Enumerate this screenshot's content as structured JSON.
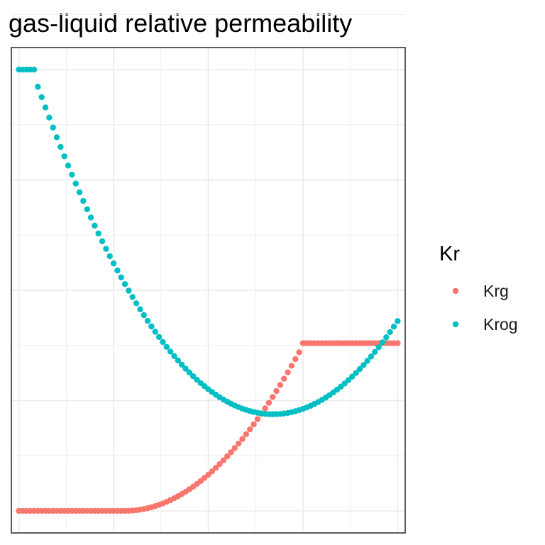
{
  "chart_data": {
    "type": "scatter",
    "title": "gas-liquid relative permeability",
    "xlabel": "",
    "ylabel": "",
    "xlim": [
      -0.02,
      1.02
    ],
    "ylim": [
      -0.05,
      1.05
    ],
    "grid": true,
    "legend": {
      "title": "Kr",
      "position": "right",
      "entries": [
        "Krg",
        "Krog"
      ]
    },
    "series": [
      {
        "name": "Krg",
        "color": "#F8766D",
        "x": [
          0,
          0.01,
          0.02,
          0.03,
          0.04,
          0.05,
          0.06,
          0.07,
          0.08,
          0.09,
          0.1,
          0.11,
          0.12,
          0.13,
          0.14,
          0.15,
          0.16,
          0.17,
          0.18,
          0.19,
          0.2,
          0.21,
          0.22,
          0.23,
          0.24,
          0.25,
          0.26,
          0.27,
          0.28,
          0.29,
          0.3,
          0.31,
          0.32,
          0.33,
          0.34,
          0.35,
          0.36,
          0.37,
          0.38,
          0.39,
          0.4,
          0.41,
          0.42,
          0.43,
          0.44,
          0.45,
          0.46,
          0.47,
          0.48,
          0.49,
          0.5,
          0.51,
          0.52,
          0.53,
          0.54,
          0.55,
          0.56,
          0.57,
          0.58,
          0.59,
          0.6,
          0.61,
          0.62,
          0.63,
          0.64,
          0.65,
          0.66,
          0.67,
          0.68,
          0.69,
          0.7,
          0.71,
          0.72,
          0.73,
          0.74,
          0.75,
          0.76,
          0.77,
          0.78,
          0.79,
          0.8,
          0.81,
          0.82,
          0.83,
          0.84,
          0.85,
          0.86,
          0.87,
          0.88,
          0.89,
          0.9,
          0.91,
          0.92,
          0.93,
          0.94,
          0.95,
          0.96,
          0.97,
          0.98,
          0.99,
          1
        ],
        "y": [
          0,
          0,
          0,
          0,
          0,
          0,
          0,
          0,
          0,
          0,
          0,
          0,
          0,
          0,
          0,
          0,
          0,
          0,
          0,
          0,
          0,
          0,
          0,
          0,
          0,
          0,
          0,
          0,
          0,
          0.0002,
          0.0007,
          0.0015,
          0.0027,
          0.0042,
          0.0061,
          0.0083,
          0.0108,
          0.0137,
          0.0169,
          0.0205,
          0.0244,
          0.0286,
          0.0332,
          0.0381,
          0.0433,
          0.0489,
          0.0548,
          0.0611,
          0.0677,
          0.0747,
          0.082,
          0.0896,
          0.0976,
          0.1059,
          0.1145,
          0.1235,
          0.1329,
          0.1425,
          0.1526,
          0.1629,
          0.1736,
          0.1847,
          0.1961,
          0.2078,
          0.2199,
          0.2323,
          0.245,
          0.2581,
          0.2716,
          0.2854,
          0.2995,
          0.314,
          0.3288,
          0.344,
          0.3595,
          0.38,
          0.38,
          0.38,
          0.38,
          0.38,
          0.38,
          0.38,
          0.38,
          0.38,
          0.38,
          0.38,
          0.38,
          0.38,
          0.38,
          0.38,
          0.38,
          0.38,
          0.38,
          0.38,
          0.38,
          0.38,
          0.38,
          0.38,
          0.38,
          0.38,
          0.38
        ]
      },
      {
        "name": "Krog",
        "color": "#00BFC4",
        "x": [
          0,
          0.01,
          0.02,
          0.03,
          0.04,
          0.05,
          0.06,
          0.07,
          0.08,
          0.09,
          0.1,
          0.11,
          0.12,
          0.13,
          0.14,
          0.15,
          0.16,
          0.17,
          0.18,
          0.19,
          0.2,
          0.21,
          0.22,
          0.23,
          0.24,
          0.25,
          0.26,
          0.27,
          0.28,
          0.29,
          0.3,
          0.31,
          0.32,
          0.33,
          0.34,
          0.35,
          0.36,
          0.37,
          0.38,
          0.39,
          0.4,
          0.41,
          0.42,
          0.43,
          0.44,
          0.45,
          0.46,
          0.47,
          0.48,
          0.49,
          0.5,
          0.51,
          0.52,
          0.53,
          0.54,
          0.55,
          0.56,
          0.57,
          0.58,
          0.59,
          0.6,
          0.61,
          0.62,
          0.63,
          0.64,
          0.65,
          0.66,
          0.67,
          0.68,
          0.69,
          0.7,
          0.71,
          0.72,
          0.73,
          0.74,
          0.75,
          0.76,
          0.77,
          0.78,
          0.79,
          0.8,
          0.81,
          0.82,
          0.83,
          0.84,
          0.85,
          0.86,
          0.87,
          0.88,
          0.89,
          0.9,
          0.91,
          0.92,
          0.93,
          0.94,
          0.95,
          0.96,
          0.97,
          0.98,
          0.99,
          1
        ],
        "y": [
          1,
          1,
          1,
          1,
          1,
          0.9612,
          0.9375,
          0.9142,
          0.8913,
          0.8688,
          0.8466,
          0.8249,
          0.8035,
          0.7825,
          0.7619,
          0.7417,
          0.7219,
          0.7024,
          0.6834,
          0.6647,
          0.6464,
          0.6285,
          0.611,
          0.5938,
          0.5771,
          0.5607,
          0.5447,
          0.5291,
          0.5139,
          0.499,
          0.4846,
          0.4705,
          0.4568,
          0.4435,
          0.4306,
          0.418,
          0.4059,
          0.3941,
          0.3827,
          0.3717,
          0.361,
          0.3508,
          0.3409,
          0.3314,
          0.3223,
          0.3136,
          0.3052,
          0.2973,
          0.2897,
          0.2825,
          0.2757,
          0.2693,
          0.2632,
          0.2576,
          0.2523,
          0.2474,
          0.2429,
          0.2388,
          0.2351,
          0.2317,
          0.2288,
          0.2262,
          0.2241,
          0.2223,
          0.2209,
          0.2199,
          0.2192,
          0.219,
          0.2192,
          0.2197,
          0.2206,
          0.2219,
          0.2237,
          0.2258,
          0.2283,
          0.2311,
          0.2344,
          0.2381,
          0.2421,
          0.2466,
          0.2514,
          0.2566,
          0.2623,
          0.2683,
          0.2747,
          0.2815,
          0.2886,
          0.2962,
          0.3042,
          0.3125,
          0.3213,
          0.3304,
          0.3399,
          0.3498,
          0.3601,
          0.3708,
          0.3819,
          0.3934,
          0.4052,
          0.4175,
          0.4301
        ]
      }
    ]
  }
}
